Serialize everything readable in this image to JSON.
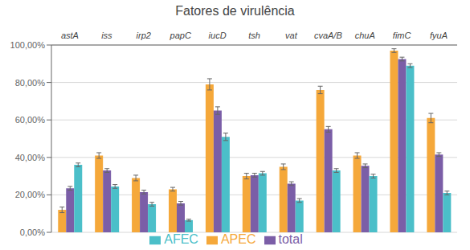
{
  "chart_data": {
    "type": "bar",
    "title": "Fatores de virulência",
    "categories": [
      "astA",
      "iss",
      "irp2",
      "papC",
      "iucD",
      "tsh",
      "vat",
      "cvaA/B",
      "chuA",
      "fimC",
      "fyuA"
    ],
    "series": [
      {
        "name": "APEC",
        "color": "#F5A83A",
        "values": [
          0.12,
          0.41,
          0.29,
          0.23,
          0.79,
          0.3,
          0.35,
          0.76,
          0.41,
          0.97,
          0.61
        ],
        "errors": [
          0.015,
          0.015,
          0.015,
          0.01,
          0.03,
          0.015,
          0.015,
          0.02,
          0.015,
          0.01,
          0.025
        ]
      },
      {
        "name": "total",
        "color": "#7B5EA7",
        "values": [
          0.235,
          0.33,
          0.215,
          0.155,
          0.65,
          0.305,
          0.26,
          0.55,
          0.355,
          0.925,
          0.415
        ],
        "errors": [
          0.01,
          0.01,
          0.01,
          0.01,
          0.02,
          0.01,
          0.01,
          0.015,
          0.01,
          0.01,
          0.01
        ]
      },
      {
        "name": "AFEC",
        "color": "#4BBFC9",
        "values": [
          0.36,
          0.245,
          0.15,
          0.065,
          0.51,
          0.315,
          0.17,
          0.33,
          0.3,
          0.89,
          0.21
        ],
        "errors": [
          0.01,
          0.01,
          0.01,
          0.005,
          0.02,
          0.01,
          0.01,
          0.01,
          0.01,
          0.01,
          0.01
        ]
      }
    ],
    "ylim": [
      0,
      1.0
    ],
    "yticks": [
      {
        "value": 0.0,
        "label": "0,00%"
      },
      {
        "value": 0.2,
        "label": "20,00%"
      },
      {
        "value": 0.4,
        "label": "40,00%"
      },
      {
        "value": 0.6,
        "label": "60,00%"
      },
      {
        "value": 0.8,
        "label": "80,00%"
      },
      {
        "value": 1.0,
        "label": "100,00%"
      }
    ],
    "grid": true,
    "legend": "bottom"
  }
}
